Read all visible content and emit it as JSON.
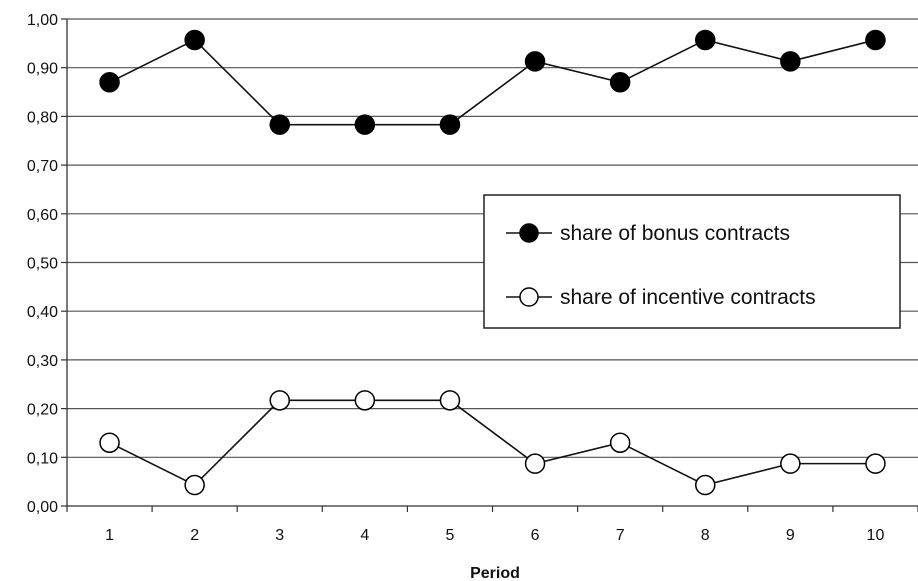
{
  "chart_data": {
    "type": "line",
    "x": [
      1,
      2,
      3,
      4,
      5,
      6,
      7,
      8,
      9,
      10
    ],
    "xlabel": "Period",
    "ylabel": "",
    "ylim": [
      0,
      1
    ],
    "yticks": [
      "0,00",
      "0,10",
      "0,20",
      "0,30",
      "0,40",
      "0,50",
      "0,60",
      "0,70",
      "0,80",
      "0,90",
      "1,00"
    ],
    "xticks": [
      "1",
      "2",
      "3",
      "4",
      "5",
      "6",
      "7",
      "8",
      "9",
      "10"
    ],
    "grid": "horizontal",
    "legend_position": "right",
    "series": [
      {
        "name": "share of bonus contracts",
        "marker": "filled-circle",
        "values": [
          0.87,
          0.957,
          0.783,
          0.783,
          0.783,
          0.913,
          0.87,
          0.957,
          0.913,
          0.957
        ]
      },
      {
        "name": "share of incentive contracts",
        "marker": "open-circle",
        "values": [
          0.13,
          0.043,
          0.217,
          0.217,
          0.217,
          0.087,
          0.13,
          0.043,
          0.087,
          0.087
        ]
      }
    ]
  }
}
